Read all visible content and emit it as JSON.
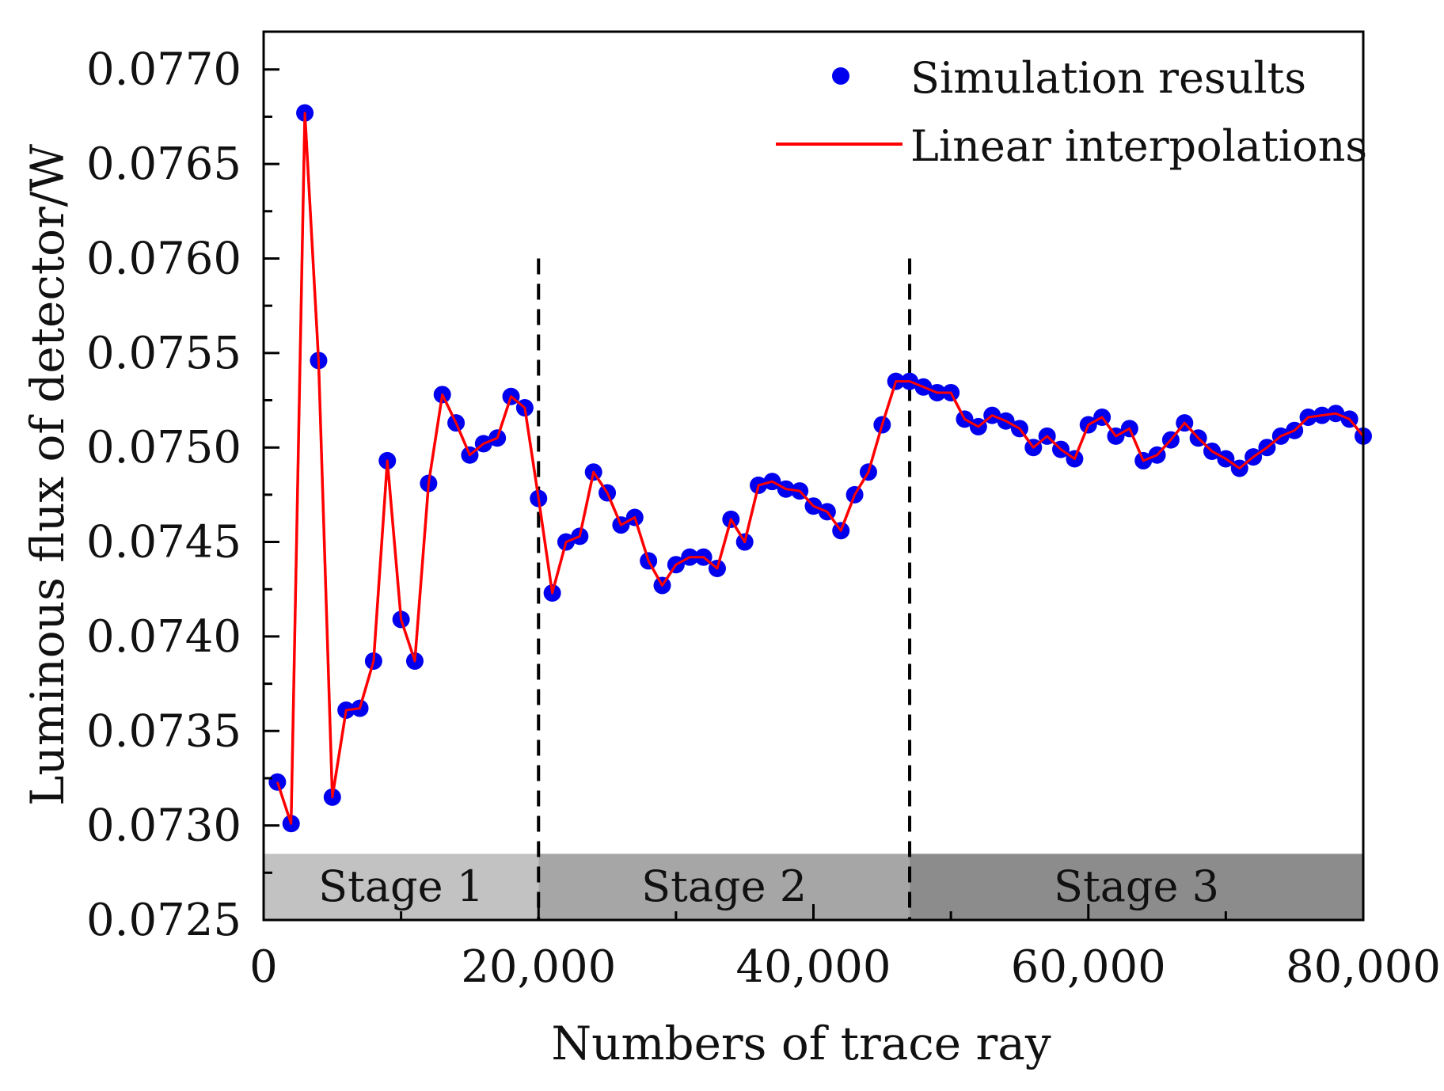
{
  "chart_data": {
    "type": "line",
    "title": "",
    "xlabel": "Numbers of trace ray",
    "ylabel": "Luminous flux of detector/W",
    "xlim": [
      0,
      80000
    ],
    "ylim": [
      0.0725,
      0.0772
    ],
    "x_ticks": [
      0,
      20000,
      40000,
      60000,
      80000
    ],
    "x_tick_labels": [
      "0",
      "20,000",
      "40,000",
      "60,000",
      "80,000"
    ],
    "y_ticks": [
      0.0725,
      0.073,
      0.0735,
      0.074,
      0.0745,
      0.075,
      0.0755,
      0.076,
      0.0765,
      0.077
    ],
    "y_tick_labels": [
      "0.0725",
      "0.0730",
      "0.0735",
      "0.0740",
      "0.0745",
      "0.0750",
      "0.0755",
      "0.0760",
      "0.0765",
      "0.0770"
    ],
    "grid": false,
    "legend_position": "top-right",
    "series": [
      {
        "name": "Simulation results",
        "kind": "scatter",
        "color": "#0000ee",
        "x": [
          1000,
          2000,
          3000,
          4000,
          5000,
          6000,
          7000,
          8000,
          9000,
          10000,
          11000,
          12000,
          13000,
          14000,
          15000,
          16000,
          17000,
          18000,
          19000,
          20000,
          21000,
          22000,
          23000,
          24000,
          25000,
          26000,
          27000,
          28000,
          29000,
          30000,
          31000,
          32000,
          33000,
          34000,
          35000,
          36000,
          37000,
          38000,
          39000,
          40000,
          41000,
          42000,
          43000,
          44000,
          45000,
          46000,
          47000,
          48000,
          49000,
          50000,
          51000,
          52000,
          53000,
          54000,
          55000,
          56000,
          57000,
          58000,
          59000,
          60000,
          61000,
          62000,
          63000,
          64000,
          65000,
          66000,
          67000,
          68000,
          69000,
          70000,
          71000,
          72000,
          73000,
          74000,
          75000,
          76000,
          77000,
          78000,
          79000,
          80000
        ],
        "values": [
          0.07323,
          0.07301,
          0.07677,
          0.07546,
          0.07315,
          0.07361,
          0.07362,
          0.07387,
          0.07493,
          0.07409,
          0.07387,
          0.07481,
          0.07528,
          0.07513,
          0.07496,
          0.07502,
          0.07505,
          0.07527,
          0.07521,
          0.07473,
          0.07423,
          0.0745,
          0.07453,
          0.07487,
          0.07476,
          0.07459,
          0.07463,
          0.0744,
          0.07427,
          0.07438,
          0.07442,
          0.07442,
          0.07436,
          0.07462,
          0.0745,
          0.0748,
          0.07482,
          0.07478,
          0.07477,
          0.07469,
          0.07466,
          0.07456,
          0.07475,
          0.07487,
          0.07512,
          0.07535,
          0.07535,
          0.07532,
          0.07529,
          0.07529,
          0.07515,
          0.07511,
          0.07517,
          0.07514,
          0.0751,
          0.075,
          0.07506,
          0.07499,
          0.07494,
          0.07512,
          0.07516,
          0.07506,
          0.0751,
          0.07493,
          0.07496,
          0.07504,
          0.07513,
          0.07505,
          0.07498,
          0.07494,
          0.07489,
          0.07495,
          0.075,
          0.07506,
          0.07509,
          0.07516,
          0.07517,
          0.07518,
          0.07515,
          0.07506
        ]
      },
      {
        "name": "Linear interpolations",
        "kind": "line",
        "color": "#ff0000",
        "x": [
          1000,
          2000,
          3000,
          4000,
          5000,
          6000,
          7000,
          8000,
          9000,
          10000,
          11000,
          12000,
          13000,
          14000,
          15000,
          16000,
          17000,
          18000,
          19000,
          20000,
          21000,
          22000,
          23000,
          24000,
          25000,
          26000,
          27000,
          28000,
          29000,
          30000,
          31000,
          32000,
          33000,
          34000,
          35000,
          36000,
          37000,
          38000,
          39000,
          40000,
          41000,
          42000,
          43000,
          44000,
          45000,
          46000,
          47000,
          48000,
          49000,
          50000,
          51000,
          52000,
          53000,
          54000,
          55000,
          56000,
          57000,
          58000,
          59000,
          60000,
          61000,
          62000,
          63000,
          64000,
          65000,
          66000,
          67000,
          68000,
          69000,
          70000,
          71000,
          72000,
          73000,
          74000,
          75000,
          76000,
          77000,
          78000,
          79000,
          80000
        ],
        "values": [
          0.07323,
          0.07301,
          0.07677,
          0.07546,
          0.07315,
          0.07361,
          0.07362,
          0.07387,
          0.07493,
          0.07409,
          0.07387,
          0.07481,
          0.07528,
          0.07513,
          0.07496,
          0.07502,
          0.07505,
          0.07527,
          0.07521,
          0.07473,
          0.07423,
          0.0745,
          0.07453,
          0.07487,
          0.07476,
          0.07459,
          0.07463,
          0.0744,
          0.07427,
          0.07438,
          0.07442,
          0.07442,
          0.07436,
          0.07462,
          0.0745,
          0.0748,
          0.07482,
          0.07478,
          0.07477,
          0.07469,
          0.07466,
          0.07456,
          0.07475,
          0.07487,
          0.07512,
          0.07535,
          0.07535,
          0.07532,
          0.07529,
          0.07529,
          0.07515,
          0.07511,
          0.07517,
          0.07514,
          0.0751,
          0.075,
          0.07506,
          0.07499,
          0.07494,
          0.07512,
          0.07516,
          0.07506,
          0.0751,
          0.07493,
          0.07496,
          0.07504,
          0.07513,
          0.07505,
          0.07498,
          0.07494,
          0.07489,
          0.07495,
          0.075,
          0.07506,
          0.07509,
          0.07516,
          0.07517,
          0.07518,
          0.07515,
          0.07506
        ]
      }
    ],
    "stages": [
      {
        "label": "Stage 1",
        "x_start": 0,
        "x_end": 20000,
        "color": "#c2c2c2"
      },
      {
        "label": "Stage 2",
        "x_start": 20000,
        "x_end": 47000,
        "color": "#a6a6a6"
      },
      {
        "label": "Stage 3",
        "x_start": 47000,
        "x_end": 80000,
        "color": "#8c8c8c"
      }
    ],
    "stage_band_y": [
      0.0725,
      0.07285
    ],
    "dividers": [
      {
        "x": 20000,
        "y_top": 0.076
      },
      {
        "x": 47000,
        "y_top": 0.076
      }
    ]
  }
}
